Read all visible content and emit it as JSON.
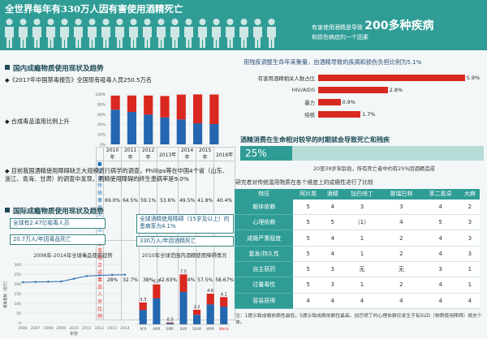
{
  "header": {
    "title": "全世界每年有330万人因有害使用酒精死亡",
    "note_prefix": "有害使用酒精是导致",
    "note_big": "200多种疾病",
    "note_suffix": "和损伤病症的一个因素",
    "people_count": 20
  },
  "left_top": {
    "section_title": "国内成瘾物质使用现状及趋势",
    "bullet1": "◆《2017年中国禁毒报告》全国现有吸毒人员250.5万名",
    "bullet2": "◆ 合成毒品滥用比例上升",
    "bullet3": "◆ 目前我国酒精使用障碍缺乏大规模流行病学的调查，Phillips等在中国4个省（山东、浙江、青海、甘肃）的调查中发现，酒精使用障碍的终生患病率是9.0%",
    "table_years": [
      "2010年",
      "2011年",
      "2012年",
      "2013年",
      "2014年",
      "2015年",
      "2016年"
    ],
    "table_rows": [
      {
        "label": "■ 吸食传统毒品人员比例",
        "values": [
          "69.0%",
          "64.5%",
          "59.1%",
          "53.6%",
          "49.5%",
          "41.8%",
          "40.4%"
        ]
      },
      {
        "label": "■ 滥用合成毒品人员比例",
        "values": [
          "28%",
          "32.7%",
          "38%",
          "42.63%",
          "49.4%",
          "57.5%",
          "58.67%"
        ]
      }
    ]
  },
  "chart_data": [
    {
      "type": "bar",
      "categories": [
        "2010年",
        "2011年",
        "2012年",
        "2013年",
        "2014年",
        "2015年",
        "2016年"
      ],
      "series": [
        {
          "name": "吸食传统毒品人员比例",
          "values": [
            69.0,
            64.5,
            59.1,
            53.6,
            49.5,
            41.8,
            40.4
          ]
        },
        {
          "name": "滥用合成毒品人员比例",
          "values": [
            28,
            32.7,
            38,
            42.63,
            49.4,
            57.5,
            58.67
          ]
        }
      ],
      "ylim": [
        0,
        100
      ],
      "stacked": true
    },
    {
      "type": "line",
      "title": "2006年-2014年全球毒品使用趋势",
      "x": [
        2006,
        2007,
        2008,
        2009,
        2010,
        2011,
        2012,
        2013,
        2014
      ],
      "xlabel": "年份",
      "ylabel": "吸毒者数（百万）",
      "values": [
        208,
        210,
        211,
        212,
        226,
        240,
        243,
        246,
        247
      ],
      "ylim": [
        0,
        300
      ]
    },
    {
      "type": "bar",
      "title": "2010年全球范围内酒精使用障碍情况",
      "categories": [
        "AFR",
        "AMR",
        "EMR",
        "EUR",
        "SEAR",
        "WPR",
        "World"
      ],
      "series": [
        {
          "name": "",
          "values": [
            3.3,
            6.0,
            0.3,
            7.5,
            2.2,
            4.6,
            4.1
          ]
        }
      ],
      "labels": [
        "3.3",
        "6.0",
        "0.3",
        "7.5",
        "2.2",
        "4.6",
        "4.1"
      ],
      "ylim": [
        0,
        9
      ]
    }
  ],
  "left_bottom": {
    "section_title": "国际成瘾物质使用现状及趋势",
    "box1": "全球有2.47亿吸毒人员",
    "box2": "20.7万人/年因毒品死亡",
    "box3": "全球酒精使用障碍（15岁及以上）的患病率为4.1%",
    "box4": "330万人/年因酒精死亡",
    "note": "注：1提示致成瘾依赖性最低，5提示致成瘾依赖性最高。加巴喷丁的心理依赖仅发生于有SUD（物质使用障碍）病史个体。"
  },
  "right": {
    "bar_title": "用残疾调整生命年来衡量，由酒精导致的疾病和损伤负担比例为5.1%",
    "bars": [
      {
        "label": "有害用酒精相关人数占比",
        "value": 5.9,
        "text": "5.9%"
      },
      {
        "label": "HIV/AIDS",
        "value": 2.8,
        "text": "2.8%"
      },
      {
        "label": "暴力",
        "value": 0.9,
        "text": "0.9%"
      },
      {
        "label": "结核",
        "value": 1.7,
        "text": "1.7%"
      }
    ],
    "banner": "酒精消费在生命相对较早的时期就会导致死亡和残疾",
    "pct_badge": "25%",
    "pct_text": "20至39岁年龄段，所有死亡者中约有25%因酒精造成",
    "table_title": "研究者对传统滥用物质在各个维度上的成瘾性进行了比较",
    "table_headers": [
      "特征",
      "阿片类",
      "酒精",
      "加巴喷丁",
      "普瑞巴林",
      "苯二氮卓",
      "大麻"
    ],
    "table_rows": [
      [
        "躯体依赖",
        "5",
        "4",
        "3",
        "3",
        "4",
        "2"
      ],
      [
        "心理依赖",
        "5",
        "5",
        "（1）",
        "4",
        "5",
        "3"
      ],
      [
        "成瘾严重程度",
        "5",
        "4",
        "1",
        "2",
        "4",
        "3"
      ],
      [
        "复发/持久性",
        "5",
        "4",
        "1",
        "2",
        "4",
        "3"
      ],
      [
        "自主获药",
        "5",
        "3",
        "无",
        "无",
        "3",
        "1"
      ],
      [
        "过量毒性",
        "5",
        "3",
        "1",
        "2",
        "4",
        "1"
      ],
      [
        "容易获得",
        "4",
        "4",
        "4",
        "4",
        "4",
        "4"
      ]
    ]
  }
}
